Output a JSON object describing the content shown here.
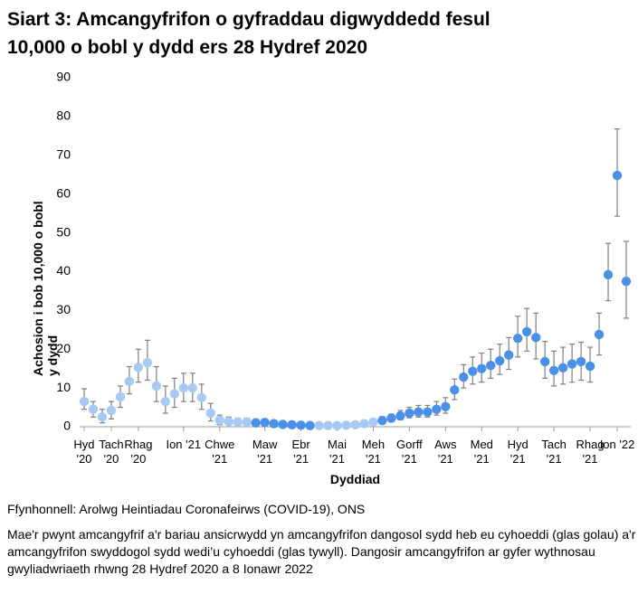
{
  "chart_data": {
    "type": "scatter",
    "title": "Siart 3: Amcangyfrifon o gyfraddau digwyddedd fesul 10,000 o bobl y dydd ers 28 Hydref 2020",
    "y_label": "Achosion i bob 10,000 o bobl y dydd",
    "x_label": "Dyddiad",
    "source": "Ffynhonnell: Arolwg Heintiadau Coronafeirws (COVID-19), ONS",
    "note": "Mae'r pwynt amcangyfrif a'r bariau ansicrwydd yn amcangyfrifon dangosol sydd heb eu cyhoeddi (glas golau) a'r amcangyfrifon swyddogol sydd wedi’u cyhoeddi (glas tywyll). Dangosir amcangyfrifon ar gyfer wythnosau gwyliadwriaeth rhwng 28 Hydref 2020 a 8 Ionawr 2022",
    "categories": [
      "Hyd '20",
      null,
      null,
      "Tach '20",
      null,
      null,
      "Rhag '20",
      null,
      null,
      null,
      null,
      "Ion '21",
      null,
      null,
      null,
      "Chwe '21",
      null,
      null,
      null,
      null,
      "Maw '21",
      null,
      null,
      null,
      "Ebr '21",
      null,
      null,
      null,
      "Mai '21",
      null,
      null,
      null,
      "Meh '21",
      null,
      null,
      null,
      "Gorff '21",
      null,
      null,
      null,
      "Aws '21",
      null,
      null,
      null,
      "Med '21",
      null,
      null,
      null,
      "Hyd '21",
      null,
      null,
      null,
      "Tach '21",
      null,
      null,
      null,
      "Rhag '21",
      null,
      null,
      "Ion '22",
      null
    ],
    "values": [
      6.5,
      4.5,
      2.5,
      4.2,
      7.7,
      11.7,
      15.3,
      16.5,
      10.5,
      6.5,
      8.5,
      10,
      10,
      7.5,
      3.5,
      1.7,
      1.3,
      1.2,
      1.2,
      1.0,
      1.1,
      0.8,
      0.6,
      0.5,
      0.4,
      0.3,
      0.3,
      0.3,
      0.3,
      0.4,
      0.5,
      0.8,
      1.2,
      1.6,
      2.2,
      2.8,
      3.5,
      3.8,
      3.8,
      4.5,
      5.2,
      9.5,
      12.8,
      14.3,
      15,
      15.8,
      17,
      18.5,
      22.8,
      24.5,
      23,
      16.8,
      14.5,
      15.2,
      16.2,
      16.8,
      15.6,
      23.8,
      39.2,
      64.8,
      37.5
    ],
    "lower": [
      4.5,
      2.5,
      1,
      2,
      5,
      8.5,
      11.5,
      12,
      6.5,
      3.5,
      5,
      6.5,
      6.5,
      4.5,
      1.5,
      0.5,
      0.5,
      0.5,
      0.5,
      0.3,
      0.4,
      0.2,
      0.1,
      0.1,
      0,
      0,
      0,
      0,
      0,
      0.1,
      0.2,
      0.3,
      0.6,
      0.8,
      1.3,
      1.8,
      2.3,
      2.5,
      2.5,
      3,
      3.5,
      7,
      10,
      11,
      11.5,
      12.5,
      13.5,
      14.8,
      18,
      19.5,
      17.5,
      12.5,
      10.5,
      11,
      11.5,
      12,
      11.5,
      18.5,
      32.5,
      54.3,
      28
    ],
    "upper": [
      9.8,
      6.5,
      4.5,
      6.5,
      10.5,
      15.5,
      20,
      22.3,
      15.5,
      10.5,
      12.5,
      13.8,
      13.8,
      11,
      6,
      3,
      2.5,
      2.2,
      2.2,
      2,
      2,
      1.5,
      1.2,
      1,
      0.9,
      0.8,
      0.8,
      0.8,
      0.8,
      0.9,
      1,
      1.5,
      2,
      2.6,
      3.3,
      4.2,
      5,
      5.5,
      5.5,
      6.5,
      7.5,
      12.3,
      16,
      18,
      19,
      20,
      21.3,
      23,
      28.5,
      30.5,
      29.3,
      22,
      19.5,
      20.5,
      21.3,
      21.8,
      20.5,
      29.3,
      47.3,
      76.8,
      47.8
    ],
    "colors": [
      "#a7c9f4",
      "#a7c9f4",
      "#a7c9f4",
      "#a7c9f4",
      "#a7c9f4",
      "#a7c9f4",
      "#a7c9f4",
      "#a7c9f4",
      "#a7c9f4",
      "#a7c9f4",
      "#a7c9f4",
      "#a7c9f4",
      "#a7c9f4",
      "#a7c9f4",
      "#a7c9f4",
      "#a7c9f4",
      "#a7c9f4",
      "#a7c9f4",
      "#a7c9f4",
      "#4a90e8",
      "#4a90e8",
      "#4a90e8",
      "#4a90e8",
      "#4a90e8",
      "#4a90e8",
      "#4a90e8",
      "#a7c9f4",
      "#a7c9f4",
      "#a7c9f4",
      "#a7c9f4",
      "#a7c9f4",
      "#a7c9f4",
      "#a7c9f4",
      "#4a90e8",
      "#4a90e8",
      "#4a90e8",
      "#4a90e8",
      "#4a90e8",
      "#4a90e8",
      "#4a90e8",
      "#4a90e8",
      "#4a90e8",
      "#4a90e8",
      "#4a90e8",
      "#4a90e8",
      "#4a90e8",
      "#4a90e8",
      "#4a90e8",
      "#4a90e8",
      "#4a90e8",
      "#4a90e8",
      "#4a90e8",
      "#4a90e8",
      "#4a90e8",
      "#4a90e8",
      "#4a90e8",
      "#4a90e8",
      "#4a90e8",
      "#4a90e8",
      "#4a90e8",
      "#4a90e8"
    ],
    "error_color": "#7f7f7f",
    "ylim": [
      0,
      90
    ],
    "yticks": [
      0,
      10,
      20,
      30,
      40,
      50,
      60,
      70,
      80,
      90
    ],
    "grid": false
  }
}
